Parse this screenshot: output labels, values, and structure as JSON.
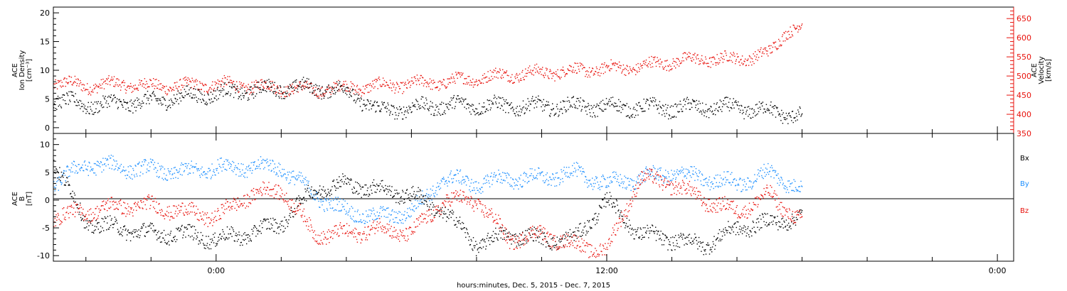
{
  "chart_data": [
    {
      "type": "scatter",
      "panel": "top",
      "ylabel_left": [
        "ACE",
        "Ion Density",
        "[cm⁻³]"
      ],
      "ylabel_right": [
        "ACE",
        "Velocity",
        "[km/s]"
      ],
      "ylim_left": [
        -1,
        21
      ],
      "yticks_left": [
        "0",
        "5",
        "10",
        "15",
        "20"
      ],
      "ylim_right": [
        350,
        680
      ],
      "yticks_right": [
        "350",
        "400",
        "450",
        "500",
        "550",
        "600",
        "650"
      ],
      "xlim_hours": [
        -5,
        24.5
      ],
      "series": [
        {
          "axis": "left",
          "color": "#000000",
          "x": [
            -5,
            -4,
            -3,
            -2,
            -1,
            0,
            1,
            2,
            3,
            4,
            5,
            6,
            7,
            8,
            9,
            10,
            11,
            12,
            13,
            14,
            15,
            16,
            17,
            17.5,
            18
          ],
          "y": [
            5,
            4,
            4.3,
            4.6,
            5.5,
            6,
            6.5,
            7,
            7,
            6.5,
            3,
            3.5,
            4,
            4,
            3.8,
            3.8,
            3.8,
            3.7,
            3.6,
            3.5,
            3.6,
            3.5,
            3,
            2.5,
            2
          ]
        },
        {
          "axis": "right",
          "color": "#e8120c",
          "x": [
            -5,
            -4,
            -3,
            -2,
            -1,
            0,
            1,
            2,
            3,
            4,
            5,
            6,
            7,
            8,
            9,
            10,
            11,
            12,
            13,
            14,
            15,
            16,
            17,
            17.5,
            18
          ],
          "y": [
            485,
            475,
            480,
            475,
            475,
            480,
            475,
            470,
            465,
            470,
            475,
            480,
            485,
            495,
            505,
            510,
            515,
            520,
            525,
            540,
            545,
            545,
            560,
            620,
            630
          ]
        }
      ]
    },
    {
      "type": "scatter",
      "panel": "bottom",
      "ylabel_left": [
        "ACE",
        "B",
        "[nT]"
      ],
      "ylim": [
        -11,
        12
      ],
      "yticks": [
        "-10",
        "-5",
        "0",
        "5",
        "10"
      ],
      "xlim_hours": [
        -5,
        24.5
      ],
      "xticks": [
        "0:00",
        "12:00",
        "0:00"
      ],
      "xlabel": "hours:minutes, Dec. 5, 2015 - Dec. 7, 2015",
      "legend": [
        "Bx",
        "By",
        "Bz"
      ],
      "series": [
        {
          "name": "Bx",
          "color": "#000000",
          "x": [
            -5,
            -4,
            -3,
            -2,
            -1,
            0,
            1,
            2,
            3,
            4,
            5,
            6,
            7,
            8,
            9,
            10,
            11,
            12,
            13,
            14,
            15,
            16,
            17,
            18
          ],
          "y": [
            7,
            -4,
            -5,
            -6,
            -6,
            -7,
            -6,
            -4,
            2,
            3,
            2,
            1,
            -2,
            -8,
            -6,
            -7,
            -7,
            0,
            -6,
            -7,
            -8,
            -5,
            -4,
            -3
          ]
        },
        {
          "name": "By",
          "color": "#1e90ff",
          "x": [
            -5,
            -4,
            -3,
            -2,
            -1,
            0,
            1,
            2,
            3,
            4,
            5,
            6,
            7,
            8,
            9,
            10,
            11,
            12,
            13,
            14,
            15,
            16,
            17,
            18
          ],
          "y": [
            3,
            6.5,
            6,
            5.5,
            5,
            6,
            6,
            6,
            1,
            -2,
            -3,
            -2,
            4,
            3,
            4,
            4,
            5,
            3,
            4,
            5,
            4,
            3,
            5,
            2
          ]
        },
        {
          "name": "Bz",
          "color": "#e8120c",
          "x": [
            -5,
            -4,
            -3,
            -2,
            -1,
            0,
            1,
            2,
            3,
            4,
            5,
            6,
            7,
            8,
            9,
            10,
            11,
            12,
            13,
            14,
            15,
            16,
            17,
            18
          ],
          "y": [
            -3,
            -2,
            -1,
            -1,
            -2,
            -3,
            1,
            2,
            -6,
            -6,
            -5,
            -6,
            0,
            0,
            -7,
            -6,
            -8,
            -9,
            4,
            3,
            0,
            -2,
            1,
            -4
          ]
        }
      ]
    }
  ]
}
